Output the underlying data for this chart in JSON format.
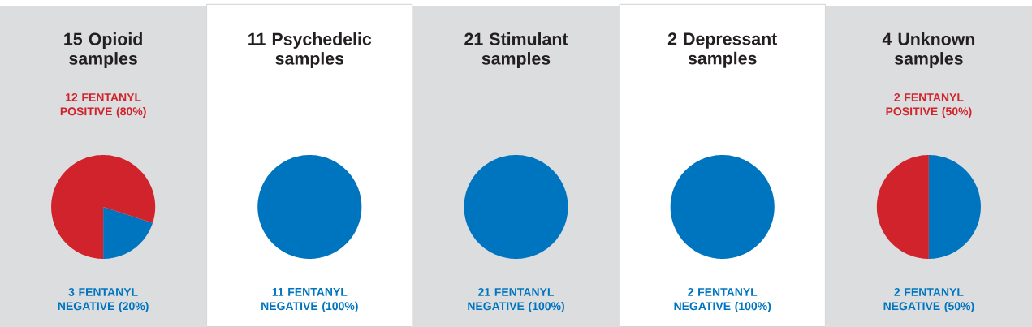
{
  "chart_data": [
    {
      "type": "pie",
      "title": "15 Opioid samples",
      "categories": [
        "12 FENTANYL POSITIVE (80%)",
        "3 FENTANYL NEGATIVE (20%)"
      ],
      "values": [
        12,
        3
      ],
      "colors": [
        "#d0232b",
        "#0075bf"
      ]
    },
    {
      "type": "pie",
      "title": "11 Psychedelic samples",
      "categories": [
        "11 FENTANYL NEGATIVE (100%)"
      ],
      "values": [
        11
      ],
      "colors": [
        "#0075bf"
      ]
    },
    {
      "type": "pie",
      "title": "21 Stimulant samples",
      "categories": [
        "21 FENTANYL NEGATIVE (100%)"
      ],
      "values": [
        21
      ],
      "colors": [
        "#0075bf"
      ]
    },
    {
      "type": "pie",
      "title": "2 Depressant samples",
      "categories": [
        "2 FENTANYL NEGATIVE (100%)"
      ],
      "values": [
        2
      ],
      "colors": [
        "#0075bf"
      ]
    },
    {
      "type": "pie",
      "title": "4 Unknown samples",
      "categories": [
        "2 FENTANYL POSITIVE (50%)",
        "2 FENTANYL NEGATIVE (50%)"
      ],
      "values": [
        2,
        2
      ],
      "colors": [
        "#d0232b",
        "#0075bf"
      ]
    }
  ]
}
